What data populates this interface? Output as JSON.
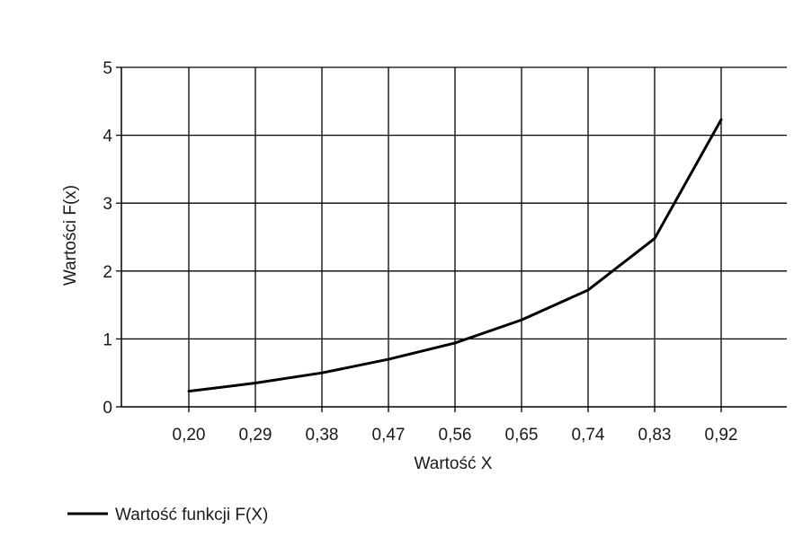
{
  "chart_data": {
    "type": "line",
    "title": "",
    "xlabel": "Wartość X",
    "ylabel": "Wartości F(x)",
    "x": [
      "0,20",
      "0,29",
      "0,38",
      "0,47",
      "0,56",
      "0,65",
      "0,74",
      "0,83",
      "0,92"
    ],
    "series": [
      {
        "name": "Wartość funkcji F(X)",
        "color": "#000000",
        "values": [
          0.23,
          0.35,
          0.5,
          0.7,
          0.94,
          1.28,
          1.72,
          2.48,
          4.23
        ]
      }
    ],
    "ylim": [
      0,
      5
    ],
    "yticks": [
      0,
      1,
      2,
      3,
      4,
      5
    ],
    "grid": true,
    "legend_position": "bottom-left"
  }
}
